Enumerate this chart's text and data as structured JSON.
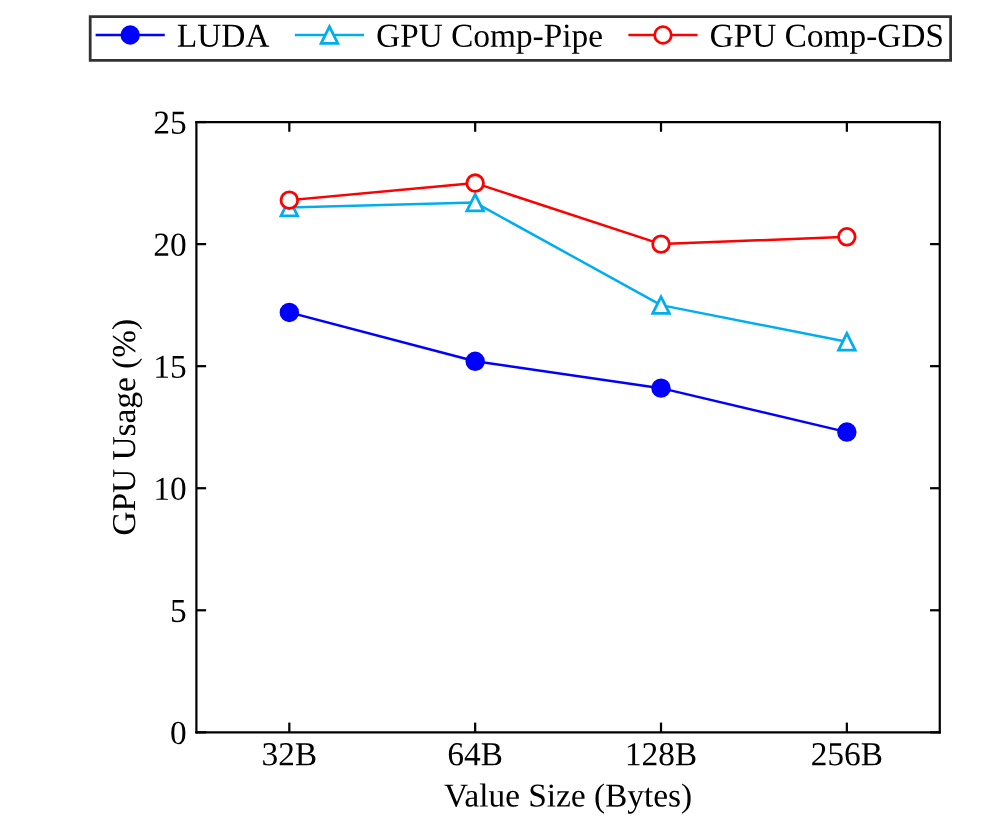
{
  "chart_data": {
    "type": "line",
    "xlabel": "Value Size (Bytes)",
    "ylabel": "GPU Usage (%)",
    "categories": [
      "32B",
      "64B",
      "128B",
      "256B"
    ],
    "series": [
      {
        "name": "LUDA",
        "color": "#0000ff",
        "marker": "circle",
        "values": [
          17.2,
          15.2,
          14.1,
          12.3
        ]
      },
      {
        "name": "GPU Comp-Pipe",
        "color": "#00aeef",
        "marker": "triangle",
        "values": [
          21.5,
          21.7,
          17.5,
          16.0
        ]
      },
      {
        "name": "GPU Comp-GDS",
        "color": "#ff0000",
        "marker": "circle",
        "values": [
          21.8,
          22.5,
          20.0,
          20.3
        ]
      }
    ],
    "ylim": [
      0,
      25
    ],
    "yticks": [
      0,
      5,
      10,
      15,
      20,
      25
    ],
    "grid": false,
    "legend": "top",
    "line_style": "solid"
  }
}
